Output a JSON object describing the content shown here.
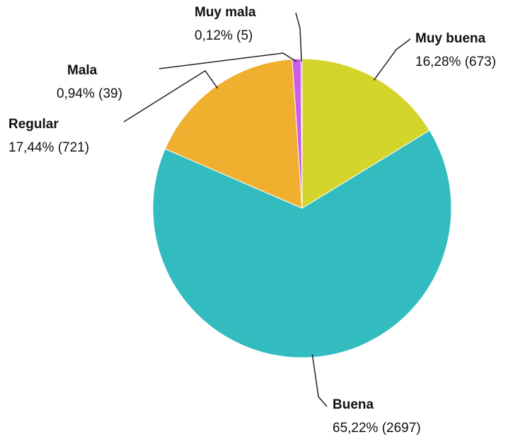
{
  "chart_data": {
    "type": "pie",
    "categories": [
      "Muy buena",
      "Buena",
      "Regular",
      "Mala",
      "Muy mala"
    ],
    "values": [
      16.28,
      65.22,
      17.44,
      0.94,
      0.12
    ],
    "value_labels": [
      "16,28% (673)",
      "65,22% (2697)",
      "17,44% (721)",
      "0,94% (39)",
      "0,12% (5)"
    ],
    "colors": [
      "#d3d52b",
      "#33bcbf",
      "#f0af2f",
      "#cc5de8",
      "#8e4fb0"
    ]
  }
}
